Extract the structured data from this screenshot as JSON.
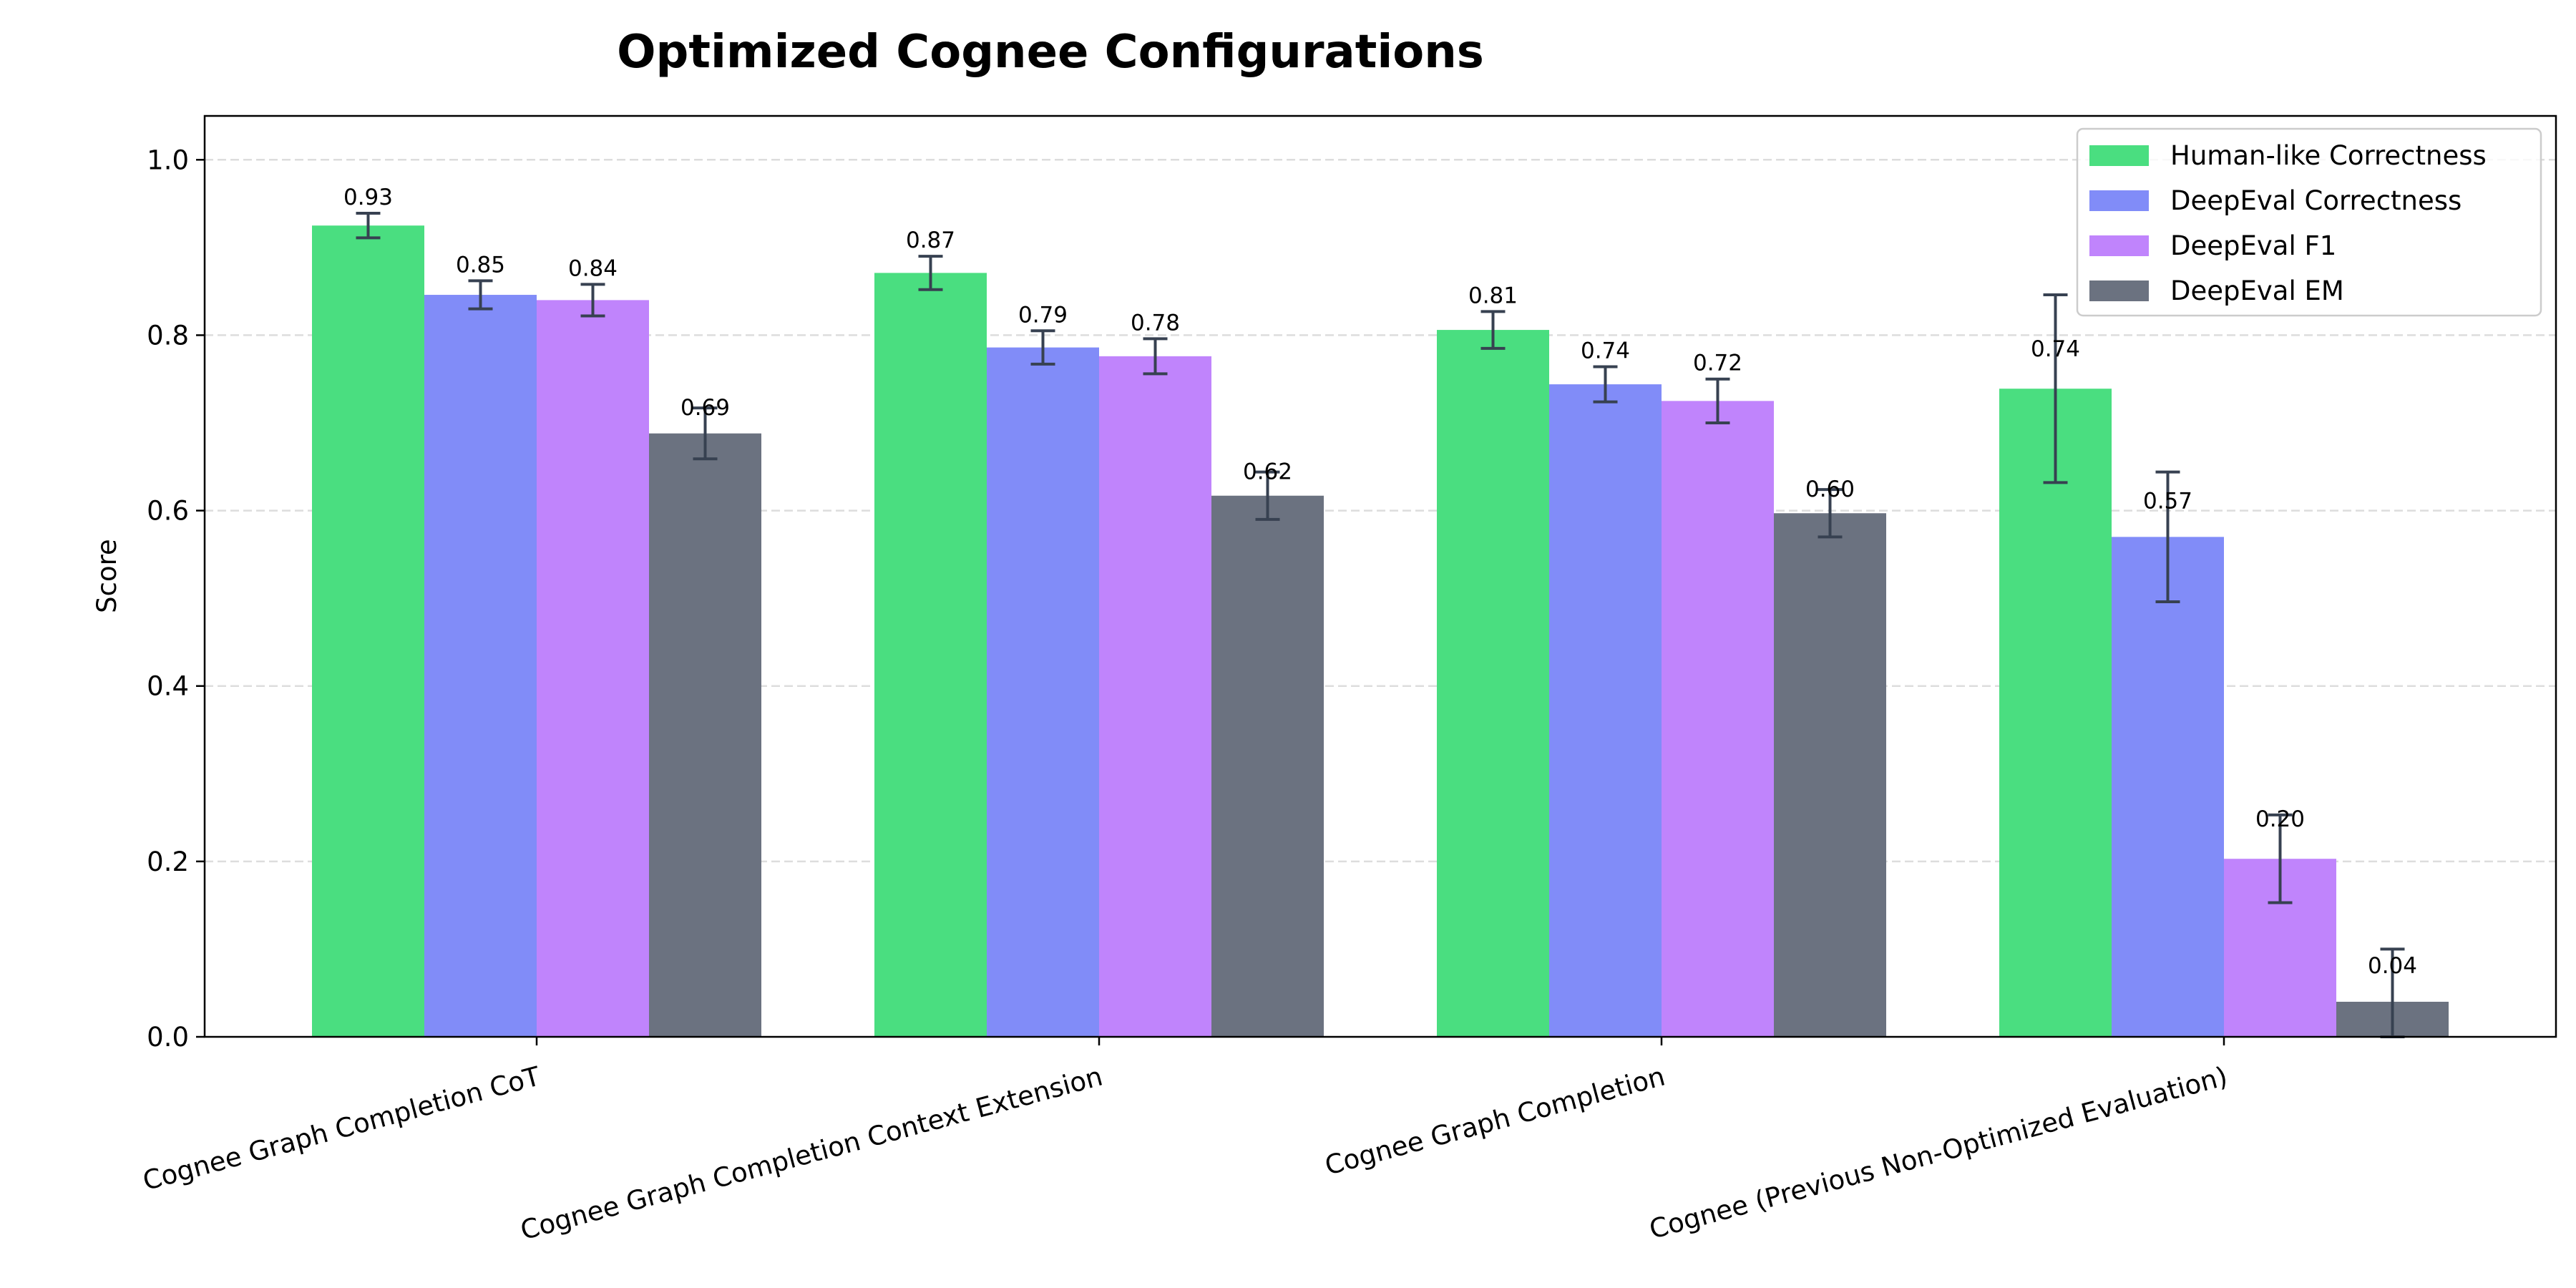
{
  "chart_data": {
    "type": "bar",
    "title": "Optimized Cognee Configurations",
    "xlabel": "",
    "ylabel": "Score",
    "ylim": [
      0,
      1.05
    ],
    "yticks": [
      "0.0",
      "0.2",
      "0.4",
      "0.6",
      "0.8",
      "1.0"
    ],
    "grid": "y, dashed",
    "legend_position": "top-right",
    "categories": [
      "Cognee Graph Completion CoT",
      "Cognee Graph Completion Context Extension",
      "Cognee Graph Completion",
      "Cognee (Previous Non-Optimized Evaluation)"
    ],
    "series": [
      {
        "name": "Human-like Correctness",
        "color": "#4ade80",
        "values": [
          0.925,
          0.871,
          0.806,
          0.739
        ],
        "errors": [
          0.014,
          0.019,
          0.021,
          0.107
        ],
        "labels": [
          "0.93",
          "0.87",
          "0.81",
          "0.74"
        ]
      },
      {
        "name": "DeepEval Correctness",
        "color": "#818cf8",
        "values": [
          0.846,
          0.786,
          0.744,
          0.57
        ],
        "errors": [
          0.016,
          0.019,
          0.02,
          0.074
        ],
        "labels": [
          "0.85",
          "0.79",
          "0.74",
          "0.57"
        ]
      },
      {
        "name": "DeepEval F1",
        "color": "#c084fc",
        "values": [
          0.84,
          0.776,
          0.725,
          0.203
        ],
        "errors": [
          0.018,
          0.02,
          0.025,
          0.05
        ],
        "labels": [
          "0.84",
          "0.78",
          "0.72",
          "0.20"
        ]
      },
      {
        "name": "DeepEval EM",
        "color": "#6b7280",
        "values": [
          0.688,
          0.617,
          0.597,
          0.04
        ],
        "errors": [
          0.029,
          0.027,
          0.027,
          0.06
        ],
        "labels": [
          "0.69",
          "0.62",
          "0.60",
          "0.04"
        ]
      }
    ],
    "error_bar_color": "#374151"
  }
}
